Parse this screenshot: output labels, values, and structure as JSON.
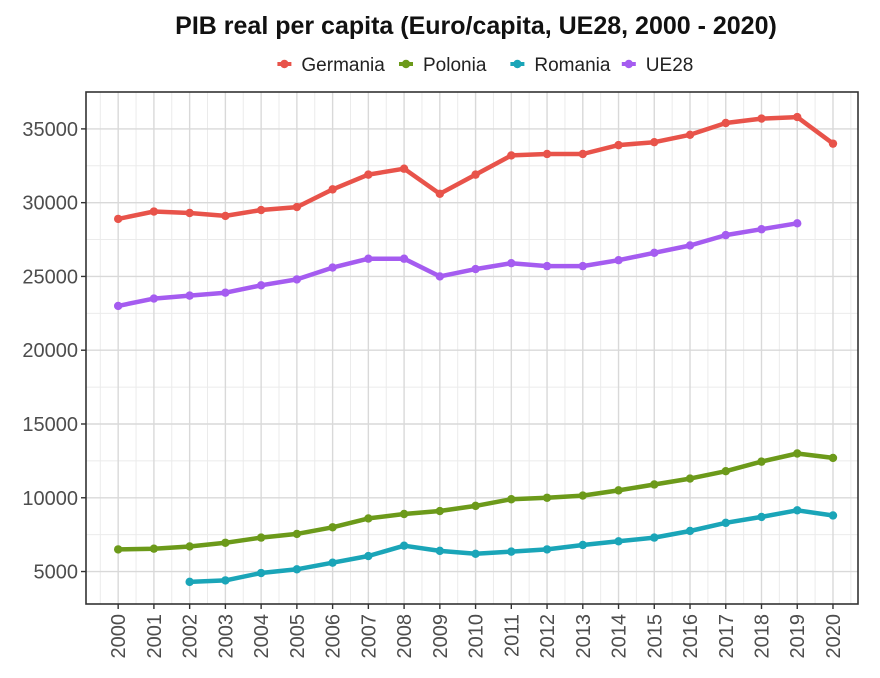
{
  "chart_data": {
    "type": "line",
    "title": "PIB real per capita (Euro/capita, UE28, 2000 - 2020)",
    "xlabel": "",
    "ylabel": "",
    "x": [
      2000,
      2001,
      2002,
      2003,
      2004,
      2005,
      2006,
      2007,
      2008,
      2009,
      2010,
      2011,
      2012,
      2013,
      2014,
      2015,
      2016,
      2017,
      2018,
      2019,
      2020
    ],
    "x_tick_labels": [
      "2000",
      "2001",
      "2002",
      "2003",
      "2004",
      "2005",
      "2006",
      "2007",
      "2008",
      "2009",
      "2010",
      "2011",
      "2012",
      "2013",
      "2014",
      "2015",
      "2016",
      "2017",
      "2018",
      "2019",
      "2020"
    ],
    "y_ticks": [
      5000,
      10000,
      15000,
      20000,
      25000,
      30000,
      35000
    ],
    "y_tick_labels": [
      "5000",
      "10000",
      "15000",
      "20000",
      "25000",
      "30000",
      "35000"
    ],
    "ylim": [
      2800,
      37500
    ],
    "xlim": [
      1999.1,
      2020.7
    ],
    "grid": true,
    "legend_position": "top",
    "series": [
      {
        "name": "Germania",
        "color": "#e8534a",
        "values": [
          28900,
          29400,
          29300,
          29100,
          29500,
          29700,
          30900,
          31900,
          32300,
          30600,
          31900,
          33200,
          33300,
          33300,
          33900,
          34100,
          34600,
          35400,
          35700,
          35800,
          34000
        ]
      },
      {
        "name": "Polonia",
        "color": "#6c9a1a",
        "values": [
          6500,
          6550,
          6700,
          6950,
          7300,
          7550,
          8000,
          8600,
          8900,
          9100,
          9450,
          9900,
          10000,
          10150,
          10500,
          10900,
          11300,
          11800,
          12450,
          13000,
          12700
        ]
      },
      {
        "name": "Romania",
        "color": "#1aa5b8",
        "values": [
          null,
          null,
          4300,
          4400,
          4900,
          5150,
          5600,
          6050,
          6750,
          6400,
          6200,
          6350,
          6500,
          6800,
          7050,
          7300,
          7750,
          8300,
          8700,
          9150,
          8800
        ]
      },
      {
        "name": "UE28",
        "color": "#a55cf0",
        "values": [
          23000,
          23500,
          23700,
          23900,
          24400,
          24800,
          25600,
          26200,
          26200,
          25000,
          25500,
          25900,
          25700,
          25700,
          26100,
          26600,
          27100,
          27800,
          28200,
          28600,
          null
        ]
      }
    ]
  }
}
